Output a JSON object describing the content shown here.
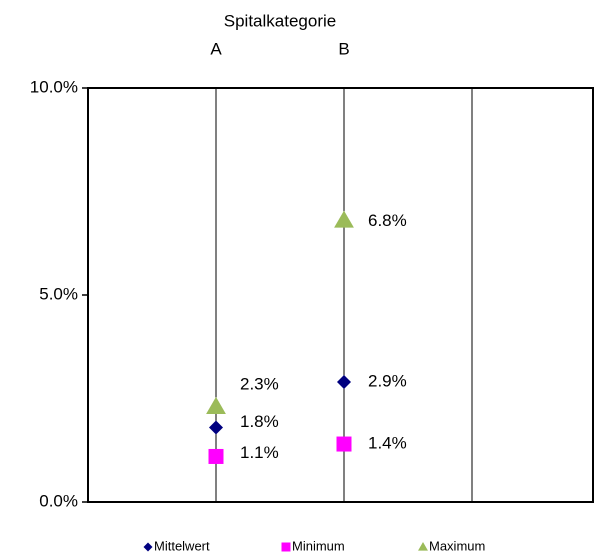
{
  "chart_data": {
    "type": "scatter",
    "title": "Spitalkategorie",
    "categories": [
      "A",
      "B",
      null
    ],
    "series": [
      {
        "name": "Mittelwert",
        "color": "#000080",
        "marker": "diamond",
        "values": [
          1.8,
          2.9,
          null
        ],
        "value_labels": [
          "1.8%",
          "2.9%",
          null
        ]
      },
      {
        "name": "Minimum",
        "color": "#ff00ff",
        "marker": "square",
        "values": [
          1.1,
          1.4,
          null
        ],
        "value_labels": [
          "1.1%",
          "1.4%",
          null
        ]
      },
      {
        "name": "Maximum",
        "color": "#9bbb59",
        "marker": "triangle",
        "values": [
          2.3,
          6.8,
          null
        ],
        "value_labels": [
          "2.3%",
          "6.8%",
          null
        ]
      }
    ],
    "ylim": [
      0,
      10
    ],
    "yticks": [
      {
        "value": 0,
        "label": "0.0%"
      },
      {
        "value": 5,
        "label": "5.0%"
      },
      {
        "value": 10,
        "label": "10.0%"
      }
    ],
    "legend": "bottom"
  }
}
